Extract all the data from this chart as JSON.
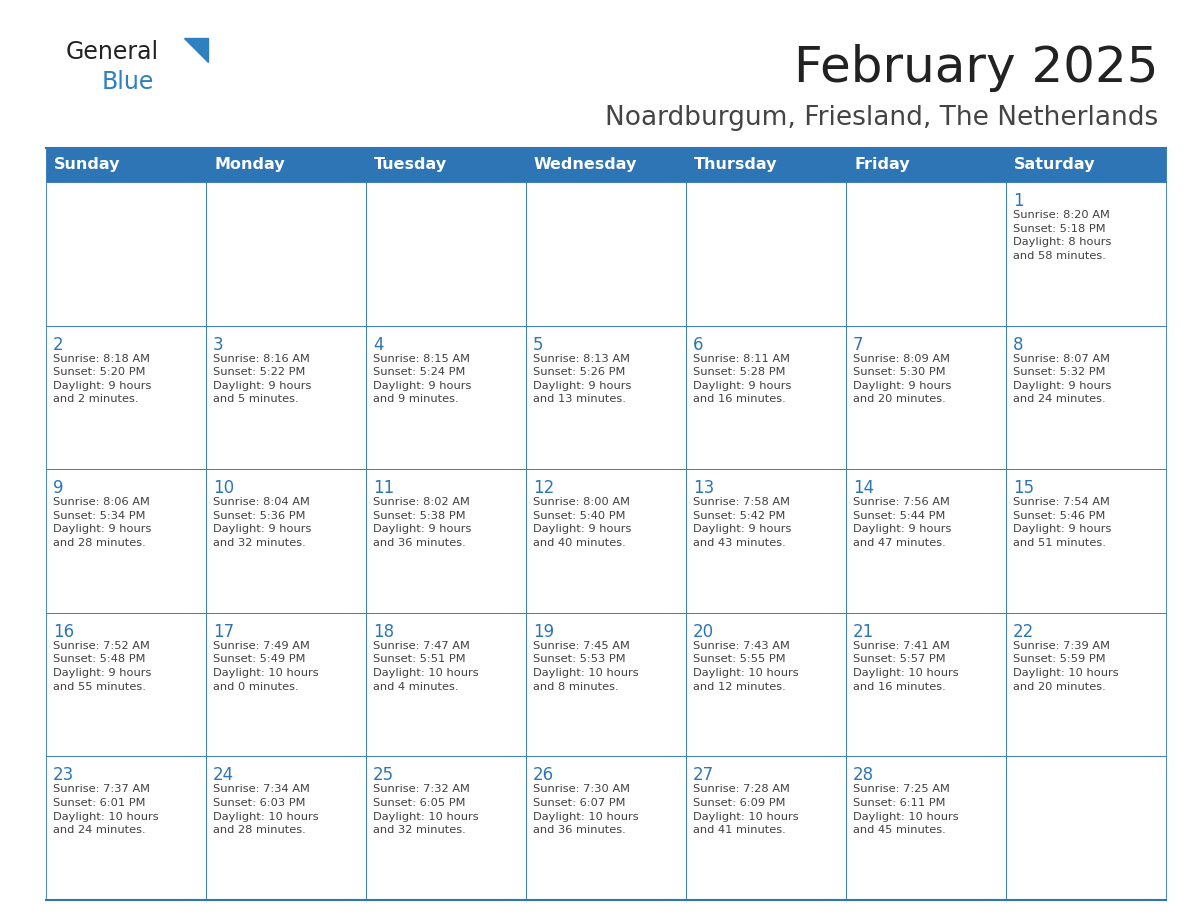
{
  "title": "February 2025",
  "subtitle": "Noardburgum, Friesland, The Netherlands",
  "header_bg": "#2E75B6",
  "header_text_color": "#FFFFFF",
  "cell_bg": "#FFFFFF",
  "border_color": "#2E75B6",
  "day_number_color": "#2E75B6",
  "text_color": "#404040",
  "title_color": "#222222",
  "subtitle_color": "#444444",
  "logo_general_color": "#222222",
  "logo_blue_color": "#2E80C0",
  "bg_color": "#FFFFFF",
  "weekdays": [
    "Sunday",
    "Monday",
    "Tuesday",
    "Wednesday",
    "Thursday",
    "Friday",
    "Saturday"
  ],
  "calendar": [
    [
      {
        "day": "",
        "info": ""
      },
      {
        "day": "",
        "info": ""
      },
      {
        "day": "",
        "info": ""
      },
      {
        "day": "",
        "info": ""
      },
      {
        "day": "",
        "info": ""
      },
      {
        "day": "",
        "info": ""
      },
      {
        "day": "1",
        "info": "Sunrise: 8:20 AM\nSunset: 5:18 PM\nDaylight: 8 hours\nand 58 minutes."
      }
    ],
    [
      {
        "day": "2",
        "info": "Sunrise: 8:18 AM\nSunset: 5:20 PM\nDaylight: 9 hours\nand 2 minutes."
      },
      {
        "day": "3",
        "info": "Sunrise: 8:16 AM\nSunset: 5:22 PM\nDaylight: 9 hours\nand 5 minutes."
      },
      {
        "day": "4",
        "info": "Sunrise: 8:15 AM\nSunset: 5:24 PM\nDaylight: 9 hours\nand 9 minutes."
      },
      {
        "day": "5",
        "info": "Sunrise: 8:13 AM\nSunset: 5:26 PM\nDaylight: 9 hours\nand 13 minutes."
      },
      {
        "day": "6",
        "info": "Sunrise: 8:11 AM\nSunset: 5:28 PM\nDaylight: 9 hours\nand 16 minutes."
      },
      {
        "day": "7",
        "info": "Sunrise: 8:09 AM\nSunset: 5:30 PM\nDaylight: 9 hours\nand 20 minutes."
      },
      {
        "day": "8",
        "info": "Sunrise: 8:07 AM\nSunset: 5:32 PM\nDaylight: 9 hours\nand 24 minutes."
      }
    ],
    [
      {
        "day": "9",
        "info": "Sunrise: 8:06 AM\nSunset: 5:34 PM\nDaylight: 9 hours\nand 28 minutes."
      },
      {
        "day": "10",
        "info": "Sunrise: 8:04 AM\nSunset: 5:36 PM\nDaylight: 9 hours\nand 32 minutes."
      },
      {
        "day": "11",
        "info": "Sunrise: 8:02 AM\nSunset: 5:38 PM\nDaylight: 9 hours\nand 36 minutes."
      },
      {
        "day": "12",
        "info": "Sunrise: 8:00 AM\nSunset: 5:40 PM\nDaylight: 9 hours\nand 40 minutes."
      },
      {
        "day": "13",
        "info": "Sunrise: 7:58 AM\nSunset: 5:42 PM\nDaylight: 9 hours\nand 43 minutes."
      },
      {
        "day": "14",
        "info": "Sunrise: 7:56 AM\nSunset: 5:44 PM\nDaylight: 9 hours\nand 47 minutes."
      },
      {
        "day": "15",
        "info": "Sunrise: 7:54 AM\nSunset: 5:46 PM\nDaylight: 9 hours\nand 51 minutes."
      }
    ],
    [
      {
        "day": "16",
        "info": "Sunrise: 7:52 AM\nSunset: 5:48 PM\nDaylight: 9 hours\nand 55 minutes."
      },
      {
        "day": "17",
        "info": "Sunrise: 7:49 AM\nSunset: 5:49 PM\nDaylight: 10 hours\nand 0 minutes."
      },
      {
        "day": "18",
        "info": "Sunrise: 7:47 AM\nSunset: 5:51 PM\nDaylight: 10 hours\nand 4 minutes."
      },
      {
        "day": "19",
        "info": "Sunrise: 7:45 AM\nSunset: 5:53 PM\nDaylight: 10 hours\nand 8 minutes."
      },
      {
        "day": "20",
        "info": "Sunrise: 7:43 AM\nSunset: 5:55 PM\nDaylight: 10 hours\nand 12 minutes."
      },
      {
        "day": "21",
        "info": "Sunrise: 7:41 AM\nSunset: 5:57 PM\nDaylight: 10 hours\nand 16 minutes."
      },
      {
        "day": "22",
        "info": "Sunrise: 7:39 AM\nSunset: 5:59 PM\nDaylight: 10 hours\nand 20 minutes."
      }
    ],
    [
      {
        "day": "23",
        "info": "Sunrise: 7:37 AM\nSunset: 6:01 PM\nDaylight: 10 hours\nand 24 minutes."
      },
      {
        "day": "24",
        "info": "Sunrise: 7:34 AM\nSunset: 6:03 PM\nDaylight: 10 hours\nand 28 minutes."
      },
      {
        "day": "25",
        "info": "Sunrise: 7:32 AM\nSunset: 6:05 PM\nDaylight: 10 hours\nand 32 minutes."
      },
      {
        "day": "26",
        "info": "Sunrise: 7:30 AM\nSunset: 6:07 PM\nDaylight: 10 hours\nand 36 minutes."
      },
      {
        "day": "27",
        "info": "Sunrise: 7:28 AM\nSunset: 6:09 PM\nDaylight: 10 hours\nand 41 minutes."
      },
      {
        "day": "28",
        "info": "Sunrise: 7:25 AM\nSunset: 6:11 PM\nDaylight: 10 hours\nand 45 minutes."
      },
      {
        "day": "",
        "info": ""
      }
    ]
  ]
}
